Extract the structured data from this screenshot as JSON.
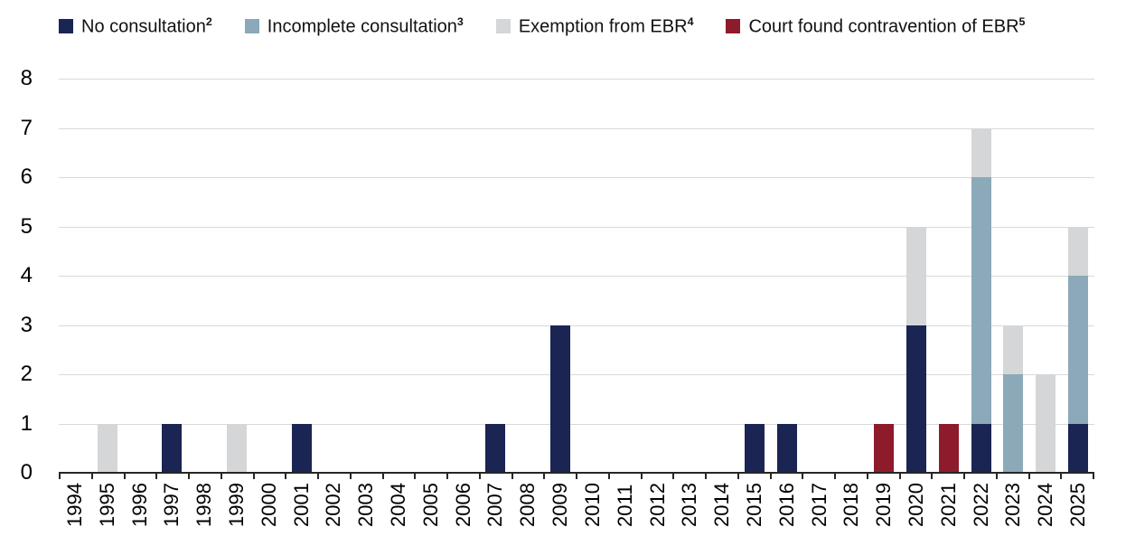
{
  "chart_data": {
    "type": "bar",
    "stacked": true,
    "title": "",
    "xlabel": "",
    "ylabel": "",
    "categories": [
      "1994",
      "1995",
      "1996",
      "1997",
      "1998",
      "1999",
      "2000",
      "2001",
      "2002",
      "2003",
      "2004",
      "2005",
      "2006",
      "2007",
      "2008",
      "2009",
      "2010",
      "2011",
      "2012",
      "2013",
      "2014",
      "2015",
      "2016",
      "2017",
      "2018",
      "2019",
      "2020",
      "2021",
      "2022",
      "2023",
      "2024",
      "2025"
    ],
    "series": [
      {
        "name": "No consultation",
        "sup": "2",
        "color": "#1b2553",
        "values": [
          0,
          0,
          0,
          1,
          0,
          0,
          0,
          1,
          0,
          0,
          0,
          0,
          0,
          1,
          0,
          3,
          0,
          0,
          0,
          0,
          0,
          1,
          1,
          0,
          0,
          0,
          3,
          0,
          1,
          0,
          0,
          1
        ]
      },
      {
        "name": "Incomplete consultation",
        "sup": "3",
        "color": "#8ba9b8",
        "values": [
          0,
          0,
          0,
          0,
          0,
          0,
          0,
          0,
          0,
          0,
          0,
          0,
          0,
          0,
          0,
          0,
          0,
          0,
          0,
          0,
          0,
          0,
          0,
          0,
          0,
          0,
          0,
          0,
          5,
          2,
          0,
          3
        ]
      },
      {
        "name": "Exemption from EBR",
        "sup": "4",
        "color": "#d5d6d8",
        "values": [
          0,
          1,
          0,
          0,
          0,
          1,
          0,
          0,
          0,
          0,
          0,
          0,
          0,
          0,
          0,
          0,
          0,
          0,
          0,
          0,
          0,
          0,
          0,
          0,
          0,
          0,
          2,
          0,
          1,
          1,
          2,
          1
        ]
      },
      {
        "name": "Court found contravention of EBR",
        "sup": "5",
        "color": "#8e1b2c",
        "values": [
          0,
          0,
          0,
          0,
          0,
          0,
          0,
          0,
          0,
          0,
          0,
          0,
          0,
          0,
          0,
          0,
          0,
          0,
          0,
          0,
          0,
          0,
          0,
          0,
          0,
          1,
          0,
          1,
          0,
          0,
          0,
          0
        ]
      }
    ],
    "ylim": [
      0,
      8
    ],
    "yticks": [
      0,
      1,
      2,
      3,
      4,
      5,
      6,
      7,
      8
    ],
    "grid": true,
    "legend_position": "top",
    "gridline_color": "#d9d9d9",
    "axis_color": "#262626"
  }
}
